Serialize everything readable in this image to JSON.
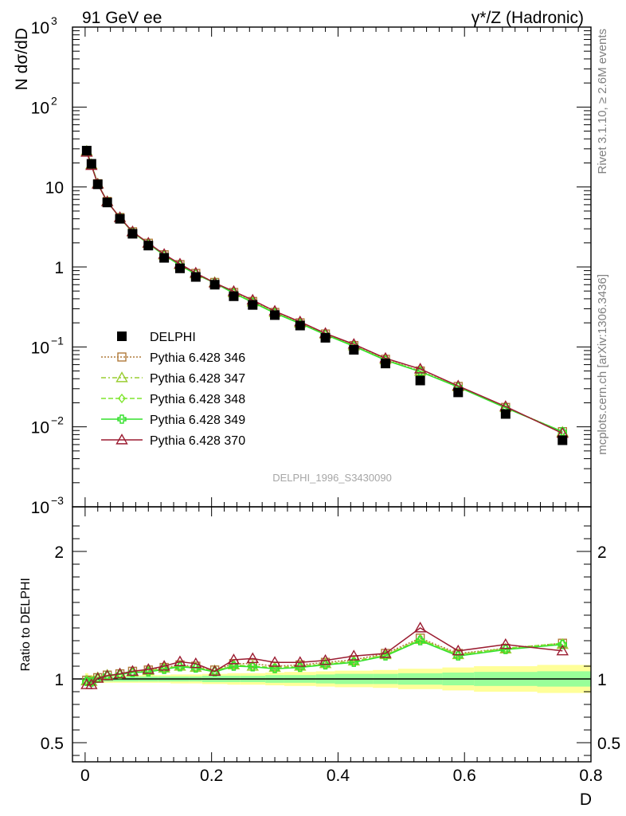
{
  "header": {
    "left": "91 GeV ee",
    "right": "γ*/Z (Hadronic)"
  },
  "side_text": {
    "rivet": "Rivet 3.1.10, ≥ 2.6M events",
    "mcplots": "mcplots.cern.ch [arXiv:1306.3436]"
  },
  "watermark": "DELPHI_1996_S3430090",
  "chart_data": [
    {
      "type": "scatter",
      "ylabel": "N dσ/dD",
      "xlabel": "",
      "yscale": "log",
      "xlim": [
        -0.02,
        0.8
      ],
      "ylim": [
        0.001,
        1000
      ],
      "y_ticks": [
        {
          "v": 0.001,
          "base": "10",
          "exp": "−3"
        },
        {
          "v": 0.01,
          "base": "10",
          "exp": "−2"
        },
        {
          "v": 0.1,
          "base": "10",
          "exp": "−1"
        },
        {
          "v": 1,
          "base": "1",
          "exp": ""
        },
        {
          "v": 10,
          "base": "10",
          "exp": ""
        },
        {
          "v": 100,
          "base": "10",
          "exp": "2"
        },
        {
          "v": 1000,
          "base": "10",
          "exp": "3"
        }
      ],
      "legend_position": "lower-left",
      "x": [
        0.0025,
        0.01,
        0.02,
        0.035,
        0.055,
        0.075,
        0.1,
        0.125,
        0.15,
        0.175,
        0.205,
        0.235,
        0.265,
        0.3,
        0.34,
        0.38,
        0.425,
        0.475,
        0.53,
        0.59,
        0.665,
        0.755
      ],
      "series": [
        {
          "name": "DELPHI",
          "color": "#000000",
          "marker": "filled-square",
          "values": [
            28.5,
            19.5,
            10.8,
            6.4,
            4.0,
            2.6,
            1.85,
            1.3,
            0.96,
            0.75,
            0.6,
            0.43,
            0.335,
            0.25,
            0.185,
            0.13,
            0.092,
            0.062,
            0.038,
            0.027,
            0.0145,
            0.0068
          ]
        },
        {
          "name": "Pythia 6.428 346",
          "color": "#b07a3a",
          "marker": "open-square",
          "dash": "2,2",
          "values": [
            28.2,
            19.2,
            11.0,
            6.6,
            4.15,
            2.75,
            1.98,
            1.42,
            1.07,
            0.83,
            0.64,
            0.48,
            0.37,
            0.27,
            0.2,
            0.145,
            0.104,
            0.07,
            0.05,
            0.032,
            0.0175,
            0.0087
          ]
        },
        {
          "name": "Pythia 6.428 347",
          "color": "#9acd32",
          "marker": "open-triangle",
          "dash": "6,3,2,3",
          "values": [
            28.1,
            19.1,
            10.95,
            6.58,
            4.14,
            2.74,
            1.97,
            1.41,
            1.06,
            0.82,
            0.64,
            0.475,
            0.365,
            0.268,
            0.198,
            0.144,
            0.103,
            0.069,
            0.0495,
            0.0318,
            0.0174,
            0.0086
          ]
        },
        {
          "name": "Pythia 6.428 348",
          "color": "#7fe62e",
          "marker": "open-diamond",
          "dash": "6,3",
          "values": [
            28.0,
            19.0,
            10.9,
            6.56,
            4.13,
            2.73,
            1.96,
            1.41,
            1.06,
            0.82,
            0.635,
            0.475,
            0.365,
            0.267,
            0.197,
            0.143,
            0.103,
            0.069,
            0.0494,
            0.0317,
            0.0174,
            0.0087
          ]
        },
        {
          "name": "Pythia 6.428 349",
          "color": "#33e02c",
          "marker": "open-cross",
          "dash": "",
          "values": [
            28.0,
            19.0,
            10.9,
            6.55,
            4.12,
            2.72,
            1.95,
            1.4,
            1.05,
            0.81,
            0.63,
            0.47,
            0.36,
            0.265,
            0.196,
            0.142,
            0.102,
            0.068,
            0.049,
            0.0315,
            0.0173,
            0.0087
          ]
        },
        {
          "name": "Pythia 6.428 370",
          "color": "#9b1c31",
          "marker": "open-triangle",
          "dash": "",
          "values": [
            27.2,
            18.6,
            10.85,
            6.55,
            4.15,
            2.76,
            1.99,
            1.44,
            1.09,
            0.84,
            0.63,
            0.495,
            0.385,
            0.28,
            0.206,
            0.148,
            0.108,
            0.072,
            0.053,
            0.0325,
            0.018,
            0.0083
          ]
        }
      ]
    },
    {
      "type": "line",
      "ylabel": "Ratio to DELPHI",
      "xlabel": "D",
      "xlim": [
        -0.02,
        0.8
      ],
      "ylim": [
        0.35,
        2.35
      ],
      "y_ticks": [
        0.5,
        1,
        2
      ],
      "x_ticks": [
        0,
        0.2,
        0.4,
        0.6,
        0.8
      ],
      "band_edges": [
        0.0,
        0.005,
        0.015,
        0.025,
        0.045,
        0.065,
        0.085,
        0.115,
        0.135,
        0.165,
        0.185,
        0.225,
        0.245,
        0.285,
        0.315,
        0.365,
        0.395,
        0.455,
        0.495,
        0.565,
        0.615,
        0.715,
        0.8
      ],
      "band_inner": [
        0.03,
        0.02,
        0.02,
        0.02,
        0.02,
        0.02,
        0.02,
        0.02,
        0.02,
        0.02,
        0.025,
        0.025,
        0.025,
        0.03,
        0.03,
        0.035,
        0.04,
        0.04,
        0.045,
        0.05,
        0.055,
        0.06
      ],
      "band_outer": [
        0.045,
        0.03,
        0.03,
        0.03,
        0.03,
        0.03,
        0.03,
        0.03,
        0.035,
        0.035,
        0.04,
        0.045,
        0.045,
        0.05,
        0.055,
        0.06,
        0.065,
        0.07,
        0.08,
        0.09,
        0.1,
        0.11
      ],
      "x": [
        0.0025,
        0.01,
        0.02,
        0.035,
        0.055,
        0.075,
        0.1,
        0.125,
        0.15,
        0.175,
        0.205,
        0.235,
        0.265,
        0.3,
        0.34,
        0.38,
        0.425,
        0.475,
        0.53,
        0.59,
        0.665,
        0.755
      ],
      "series": [
        {
          "name": "Pythia 6.428 346",
          "color": "#b07a3a",
          "marker": "open-square",
          "dash": "2,2",
          "values": [
            0.99,
            0.985,
            1.01,
            1.03,
            1.04,
            1.06,
            1.07,
            1.09,
            1.11,
            1.1,
            1.07,
            1.12,
            1.12,
            1.1,
            1.11,
            1.13,
            1.15,
            1.2,
            1.32,
            1.2,
            1.24,
            1.28
          ]
        },
        {
          "name": "Pythia 6.428 347",
          "color": "#9acd32",
          "marker": "open-triangle",
          "dash": "6,3,2,3",
          "values": [
            0.985,
            0.98,
            1.01,
            1.03,
            1.04,
            1.055,
            1.065,
            1.085,
            1.1,
            1.09,
            1.065,
            1.11,
            1.1,
            1.09,
            1.1,
            1.12,
            1.14,
            1.19,
            1.31,
            1.19,
            1.235,
            1.27
          ]
        },
        {
          "name": "Pythia 6.428 348",
          "color": "#7fe62e",
          "marker": "open-diamond",
          "dash": "6,3",
          "values": [
            0.983,
            0.975,
            1.005,
            1.025,
            1.035,
            1.05,
            1.06,
            1.08,
            1.1,
            1.09,
            1.06,
            1.105,
            1.1,
            1.085,
            1.095,
            1.115,
            1.135,
            1.185,
            1.31,
            1.19,
            1.24,
            1.28
          ]
        },
        {
          "name": "Pythia 6.428 349",
          "color": "#33e02c",
          "marker": "open-cross",
          "dash": "",
          "values": [
            0.98,
            0.975,
            1.005,
            1.025,
            1.035,
            1.05,
            1.055,
            1.075,
            1.095,
            1.085,
            1.055,
            1.1,
            1.095,
            1.08,
            1.09,
            1.11,
            1.13,
            1.18,
            1.3,
            1.18,
            1.23,
            1.27
          ]
        },
        {
          "name": "Pythia 6.428 370",
          "color": "#9b1c31",
          "marker": "open-triangle",
          "dash": "",
          "values": [
            0.955,
            0.955,
            1.005,
            1.025,
            1.04,
            1.06,
            1.075,
            1.1,
            1.135,
            1.12,
            1.06,
            1.15,
            1.16,
            1.13,
            1.13,
            1.145,
            1.18,
            1.2,
            1.4,
            1.22,
            1.27,
            1.22
          ]
        }
      ]
    }
  ]
}
